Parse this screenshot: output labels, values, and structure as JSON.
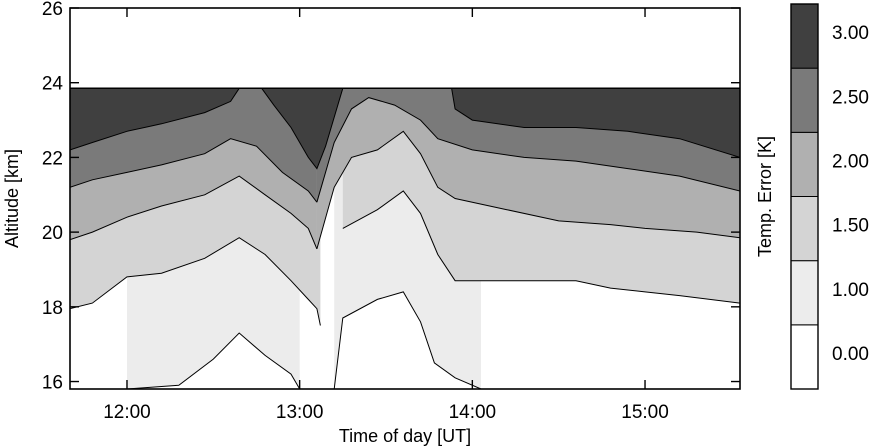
{
  "chart_data": {
    "type": "contour",
    "xlabel": "Time of day [UT]",
    "ylabel": "Altitude [km]",
    "xlim": [
      11.67,
      15.55
    ],
    "ylim": [
      15.8,
      26
    ],
    "x_ticks": [
      12,
      13,
      14,
      15
    ],
    "x_tick_labels": [
      "12:00",
      "13:00",
      "14:00",
      "15:00"
    ],
    "y_ticks": [
      16,
      18,
      20,
      22,
      24,
      26
    ],
    "y_tick_labels": [
      "16",
      "18",
      "20",
      "22",
      "24",
      "26"
    ],
    "colorbar": {
      "label": "Temp. Error [K]",
      "levels": [
        0.0,
        1.0,
        1.5,
        2.0,
        2.5,
        3.0
      ],
      "level_labels": [
        "0.00",
        "1.00",
        "1.50",
        "2.00",
        "2.50",
        "3.00"
      ],
      "colors": [
        "#ffffff",
        "#ececec",
        "#d4d4d4",
        "#b0b0b0",
        "#7a7a7a",
        "#404040"
      ]
    },
    "data_top_altitude": 23.85,
    "contours": [
      {
        "level": 1.0,
        "segments": [
          [
            [
              12.0,
              15.8
            ],
            [
              12.3,
              15.9
            ],
            [
              12.5,
              16.6
            ],
            [
              12.65,
              17.3
            ],
            [
              12.8,
              16.7
            ],
            [
              12.95,
              16.2
            ],
            [
              13.0,
              15.8
            ]
          ],
          [
            [
              13.2,
              15.8
            ],
            [
              13.25,
              17.7
            ],
            [
              13.45,
              18.2
            ],
            [
              13.6,
              18.4
            ],
            [
              13.7,
              17.6
            ],
            [
              13.78,
              16.5
            ],
            [
              13.9,
              16.1
            ],
            [
              14.05,
              15.8
            ]
          ]
        ]
      },
      {
        "level": 1.5,
        "segments": [
          [
            [
              11.67,
              17.95
            ],
            [
              11.8,
              18.1
            ],
            [
              12.0,
              18.8
            ],
            [
              12.2,
              18.9
            ],
            [
              12.45,
              19.3
            ],
            [
              12.65,
              19.85
            ],
            [
              12.8,
              19.4
            ],
            [
              12.95,
              18.7
            ],
            [
              13.05,
              18.2
            ],
            [
              13.1,
              17.95
            ],
            [
              13.12,
              17.5
            ]
          ],
          [
            [
              13.25,
              20.1
            ],
            [
              13.45,
              20.6
            ],
            [
              13.6,
              21.1
            ],
            [
              13.7,
              20.5
            ],
            [
              13.8,
              19.4
            ],
            [
              13.9,
              18.7
            ],
            [
              14.2,
              18.7
            ],
            [
              14.6,
              18.7
            ],
            [
              14.8,
              18.5
            ],
            [
              15.0,
              18.4
            ],
            [
              15.2,
              18.3
            ],
            [
              15.55,
              18.1
            ]
          ]
        ]
      },
      {
        "level": 2.0,
        "segments": [
          [
            [
              11.67,
              19.8
            ],
            [
              11.8,
              20.0
            ],
            [
              12.0,
              20.4
            ],
            [
              12.2,
              20.7
            ],
            [
              12.45,
              21.0
            ],
            [
              12.65,
              21.5
            ],
            [
              12.8,
              21.0
            ],
            [
              12.95,
              20.5
            ],
            [
              13.05,
              20.1
            ],
            [
              13.1,
              19.55
            ]
          ],
          [
            [
              13.1,
              19.55
            ],
            [
              13.2,
              21.2
            ],
            [
              13.3,
              22.0
            ],
            [
              13.45,
              22.2
            ],
            [
              13.6,
              22.7
            ],
            [
              13.7,
              22.1
            ],
            [
              13.8,
              21.2
            ],
            [
              13.9,
              20.9
            ],
            [
              14.2,
              20.6
            ],
            [
              14.5,
              20.3
            ],
            [
              14.8,
              20.2
            ],
            [
              15.0,
              20.1
            ],
            [
              15.3,
              20.0
            ],
            [
              15.55,
              19.85
            ]
          ]
        ]
      },
      {
        "level": 2.5,
        "segments": [
          [
            [
              11.67,
              21.2
            ],
            [
              11.8,
              21.4
            ],
            [
              12.0,
              21.6
            ],
            [
              12.2,
              21.8
            ],
            [
              12.45,
              22.1
            ],
            [
              12.6,
              22.5
            ],
            [
              12.75,
              22.3
            ],
            [
              12.9,
              21.6
            ],
            [
              13.05,
              21.1
            ],
            [
              13.1,
              20.8
            ]
          ],
          [
            [
              13.1,
              20.8
            ],
            [
              13.2,
              22.4
            ],
            [
              13.3,
              23.3
            ],
            [
              13.4,
              23.6
            ],
            [
              13.55,
              23.4
            ],
            [
              13.7,
              23.0
            ],
            [
              13.8,
              22.5
            ],
            [
              14.0,
              22.2
            ],
            [
              14.3,
              22.0
            ],
            [
              14.6,
              21.9
            ],
            [
              14.9,
              21.7
            ],
            [
              15.2,
              21.5
            ],
            [
              15.55,
              21.1
            ]
          ]
        ]
      },
      {
        "level": 3.0,
        "segments": [
          [
            [
              11.67,
              22.2
            ],
            [
              11.8,
              22.4
            ],
            [
              12.0,
              22.7
            ],
            [
              12.2,
              22.9
            ],
            [
              12.45,
              23.2
            ],
            [
              12.6,
              23.5
            ],
            [
              12.65,
              23.85
            ]
          ],
          [
            [
              12.78,
              23.85
            ],
            [
              12.85,
              23.4
            ],
            [
              12.95,
              22.8
            ],
            [
              13.05,
              22.0
            ],
            [
              13.1,
              21.7
            ],
            [
              13.15,
              22.3
            ],
            [
              13.25,
              23.85
            ]
          ],
          [
            [
              13.88,
              23.85
            ],
            [
              13.9,
              23.3
            ],
            [
              14.0,
              23.0
            ],
            [
              14.3,
              22.8
            ],
            [
              14.6,
              22.8
            ],
            [
              14.9,
              22.7
            ],
            [
              15.2,
              22.5
            ],
            [
              15.55,
              22.0
            ]
          ]
        ]
      }
    ]
  }
}
